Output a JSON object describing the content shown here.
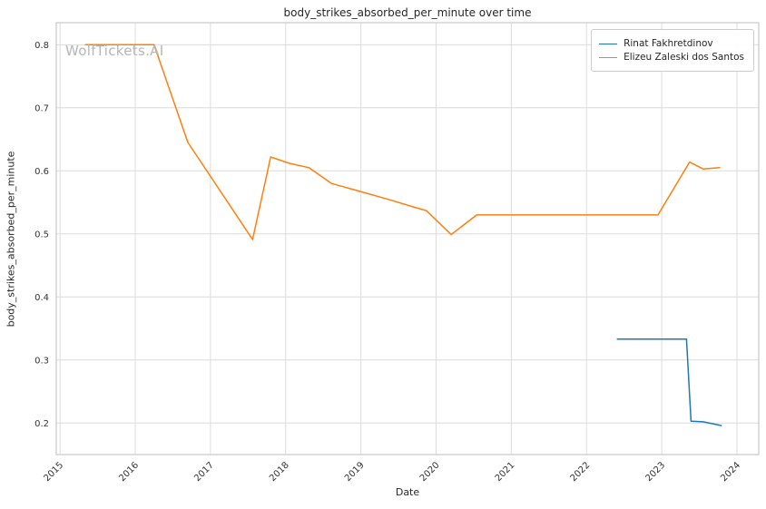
{
  "watermark": "WolfTickets.AI",
  "chart_data": {
    "type": "line",
    "title": "body_strikes_absorbed_per_minute over time",
    "xlabel": "Date",
    "ylabel": "body_strikes_absorbed_per_minute",
    "xlim": [
      2014.95,
      2024.29
    ],
    "ylim": [
      0.15,
      0.835
    ],
    "x_ticks": [
      2015,
      2016,
      2017,
      2018,
      2019,
      2020,
      2021,
      2022,
      2023,
      2024
    ],
    "y_ticks": [
      0.2,
      0.3,
      0.4,
      0.5,
      0.6,
      0.7,
      0.8
    ],
    "grid": true,
    "legend_position": "upper right",
    "colors": {
      "grid": "#dcdcdc",
      "frame": "#c8c8c8",
      "tick_text": "#333333"
    },
    "series": [
      {
        "name": "Rinat Fakhretdinov",
        "color": "#1f77b4",
        "points": [
          [
            2022.41,
            0.333
          ],
          [
            2023.33,
            0.333
          ],
          [
            2023.39,
            0.203
          ],
          [
            2023.55,
            0.202
          ],
          [
            2023.79,
            0.196
          ]
        ]
      },
      {
        "name": "Elizeu Zaleski dos Santos",
        "color": "#ff7f0e",
        "points": [
          [
            2015.34,
            0.8
          ],
          [
            2016.25,
            0.8
          ],
          [
            2016.7,
            0.645
          ],
          [
            2017.56,
            0.491
          ],
          [
            2017.8,
            0.622
          ],
          [
            2018.05,
            0.612
          ],
          [
            2018.31,
            0.605
          ],
          [
            2018.61,
            0.58
          ],
          [
            2018.97,
            0.568
          ],
          [
            2019.39,
            0.554
          ],
          [
            2019.69,
            0.543
          ],
          [
            2019.87,
            0.537
          ],
          [
            2020.2,
            0.499
          ],
          [
            2020.54,
            0.53
          ],
          [
            2022.95,
            0.53
          ],
          [
            2023.37,
            0.614
          ],
          [
            2023.55,
            0.603
          ],
          [
            2023.77,
            0.605
          ]
        ]
      }
    ]
  }
}
